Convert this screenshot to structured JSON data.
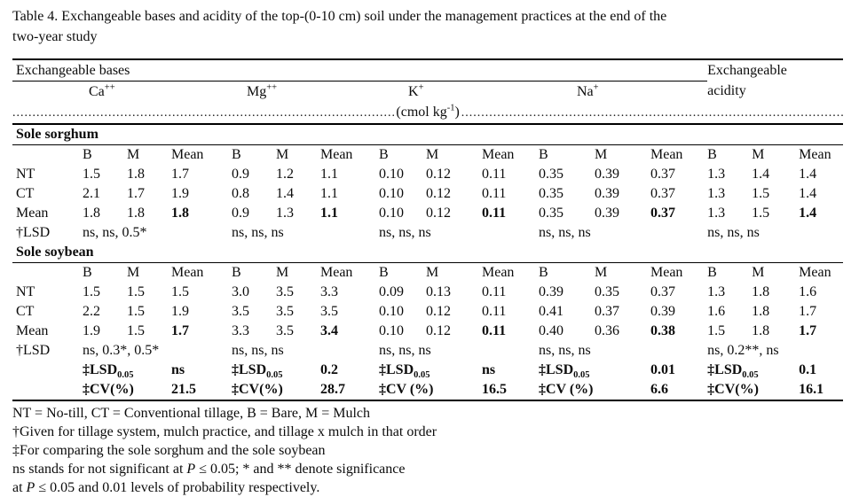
{
  "title": {
    "line1": "Table 4. Exchangeable bases and acidity of the top-(0-10 cm) soil under the management practices at the end of the",
    "line2": "two-year study"
  },
  "table": {
    "bases_header": "Exchangeable bases",
    "acidity_header": {
      "line1": "Exchangeable",
      "line2": "acidity"
    },
    "ions": [
      {
        "name": "Ca",
        "charge": "++"
      },
      {
        "name": "Mg",
        "charge": "++"
      },
      {
        "name": "K",
        "charge": "+"
      },
      {
        "name": "Na",
        "charge": "+"
      }
    ],
    "unit_row": {
      "dots_left": "........................................................................................................................",
      "unit_open": "(cmol kg",
      "unit_sup": "-1",
      "unit_close": ")",
      "dots_right": "........................................................................................................................"
    },
    "col_headers": [
      "B",
      "M",
      "Mean"
    ],
    "sections": [
      {
        "name": "Sole sorghum",
        "rows": [
          {
            "label": "NT",
            "values": [
              "1.5",
              "1.8",
              "1.7",
              "0.9",
              "1.2",
              "1.1",
              "0.10",
              "0.12",
              "0.11",
              "0.35",
              "0.39",
              "0.37",
              "1.3",
              "1.4",
              "1.4"
            ]
          },
          {
            "label": "CT",
            "values": [
              "2.1",
              "1.7",
              "1.9",
              "0.8",
              "1.4",
              "1.1",
              "0.10",
              "0.12",
              "0.11",
              "0.35",
              "0.39",
              "0.37",
              "1.3",
              "1.5",
              "1.4"
            ]
          },
          {
            "label": "Mean",
            "values": [
              "1.8",
              "1.8",
              "1.8",
              "0.9",
              "1.3",
              "1.1",
              "0.10",
              "0.12",
              "0.11",
              "0.35",
              "0.39",
              "0.37",
              "1.3",
              "1.5",
              "1.4"
            ]
          }
        ],
        "lsd": {
          "label": "†LSD",
          "values": [
            "ns, ns, 0.5*",
            "ns, ns, ns",
            "ns, ns, ns",
            "ns, ns, ns",
            "ns, ns, ns"
          ]
        }
      },
      {
        "name": "Sole soybean",
        "rows": [
          {
            "label": "NT",
            "values": [
              "1.5",
              "1.5",
              "1.5",
              "3.0",
              "3.5",
              "3.3",
              "0.09",
              "0.13",
              "0.11",
              "0.39",
              "0.35",
              "0.37",
              "1.3",
              "1.8",
              "1.6"
            ]
          },
          {
            "label": "CT",
            "values": [
              "2.2",
              "1.5",
              "1.9",
              "3.5",
              "3.5",
              "3.5",
              "0.10",
              "0.12",
              "0.11",
              "0.41",
              "0.37",
              "0.39",
              "1.6",
              "1.8",
              "1.7"
            ]
          },
          {
            "label": "Mean",
            "values": [
              "1.9",
              "1.5",
              "1.7",
              "3.3",
              "3.5",
              "3.4",
              "0.10",
              "0.12",
              "0.11",
              "0.40",
              "0.36",
              "0.38",
              "1.5",
              "1.8",
              "1.7"
            ]
          }
        ],
        "lsd": {
          "label": "†LSD",
          "values": [
            "ns, 0.3*, 0.5*",
            "ns, ns, ns",
            "ns, ns, ns",
            "ns, ns, ns",
            "ns, 0.2**, ns"
          ]
        }
      }
    ],
    "overall": {
      "lsd_label": "‡LSD",
      "lsd_sub": "0.05",
      "lsd_values": [
        "ns",
        "0.2",
        "ns",
        "0.01",
        "0.1"
      ],
      "cv_labels": [
        "‡CV(%)",
        "‡CV(%)",
        "‡CV (%)",
        "‡CV (%)",
        "‡CV(%)"
      ],
      "cv_values": [
        "21.5",
        "28.7",
        "16.5",
        "6.6",
        "16.1"
      ]
    }
  },
  "footnotes": {
    "line1": "NT = No-till, CT = Conventional tillage, B = Bare, M = Mulch",
    "line2": "†Given for tillage system, mulch practice, and tillage x mulch in that order",
    "line3": "‡For comparing the sole sorghum and the sole soybean",
    "line4_pre": "ns stands for not significant at ",
    "line4_p": "P",
    "line4_post": " ≤ 0.05; * and ** denote significance",
    "line5_pre": "at ",
    "line5_p": "P",
    "line5_post": " ≤ 0.05 and 0.01 levels of probability respectively."
  }
}
